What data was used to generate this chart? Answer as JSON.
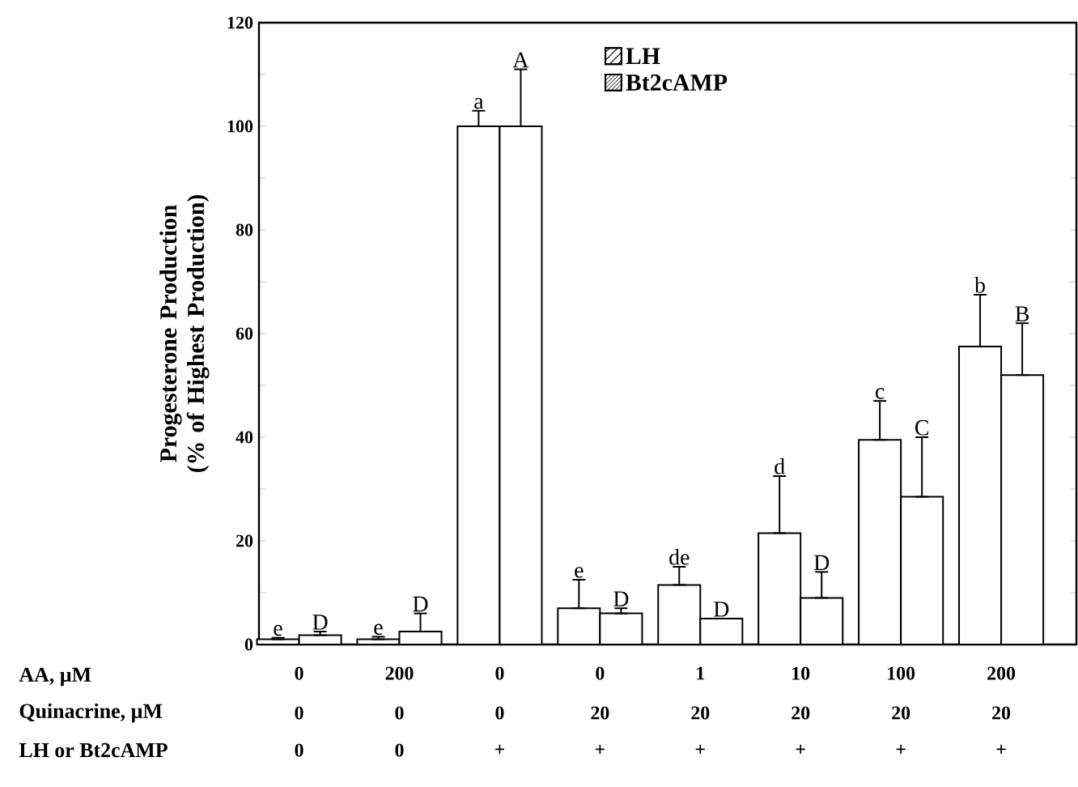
{
  "chart_data": {
    "type": "bar",
    "ylabel": "Progesterone Production (% of Highest Production)",
    "categories": [
      "0",
      "200",
      "0",
      "0",
      "1",
      "10",
      "100",
      "200"
    ],
    "series": [
      {
        "name": "LH",
        "color": "#000000",
        "values": [
          1,
          1,
          100,
          7,
          11.5,
          21.5,
          39.5,
          57.5
        ],
        "errors": [
          [
            1,
            1.3
          ],
          [
            1,
            1.5
          ],
          [
            100,
            103
          ],
          [
            7,
            12.5
          ],
          [
            11.5,
            15
          ],
          [
            21.5,
            32.5
          ],
          [
            39.5,
            47
          ],
          [
            57.5,
            67.5
          ]
        ]
      },
      {
        "name": "Bt2cAMP",
        "color": "#000000",
        "values": [
          1.8,
          2.5,
          100,
          6,
          5,
          9,
          28.5,
          52
        ],
        "errors": [
          [
            1.8,
            2.5
          ],
          [
            2.5,
            6
          ],
          [
            100,
            111
          ],
          [
            6,
            7
          ],
          null,
          [
            9,
            14
          ],
          [
            28.5,
            40
          ],
          [
            52,
            62
          ]
        ]
      }
    ],
    "ylim": [
      0,
      120
    ],
    "yticks": [
      0,
      {
        "value": 10,
        "label": null
      },
      20,
      {
        "value": 30,
        "label": null
      },
      40,
      {
        "value": 50,
        "label": null
      },
      60,
      {
        "value": 70,
        "label": null
      },
      80,
      {
        "value": 90,
        "label": null
      },
      100,
      {
        "value": 110,
        "label": null
      },
      120
    ],
    "legend": "top",
    "annotations": [
      "AA, µM",
      "Quinacrine, µM",
      "LH or Bt2cAMP",
      "0",
      "0",
      "0",
      "20",
      "20",
      "20",
      "20",
      "20",
      "0",
      "0",
      "+",
      "+",
      "+",
      "+",
      "+",
      "+",
      "e",
      "D",
      "e",
      "D",
      "a",
      "A",
      "e",
      "D",
      "de",
      "D",
      "d",
      "D",
      "c",
      "C",
      "b",
      "B"
    ]
  }
}
